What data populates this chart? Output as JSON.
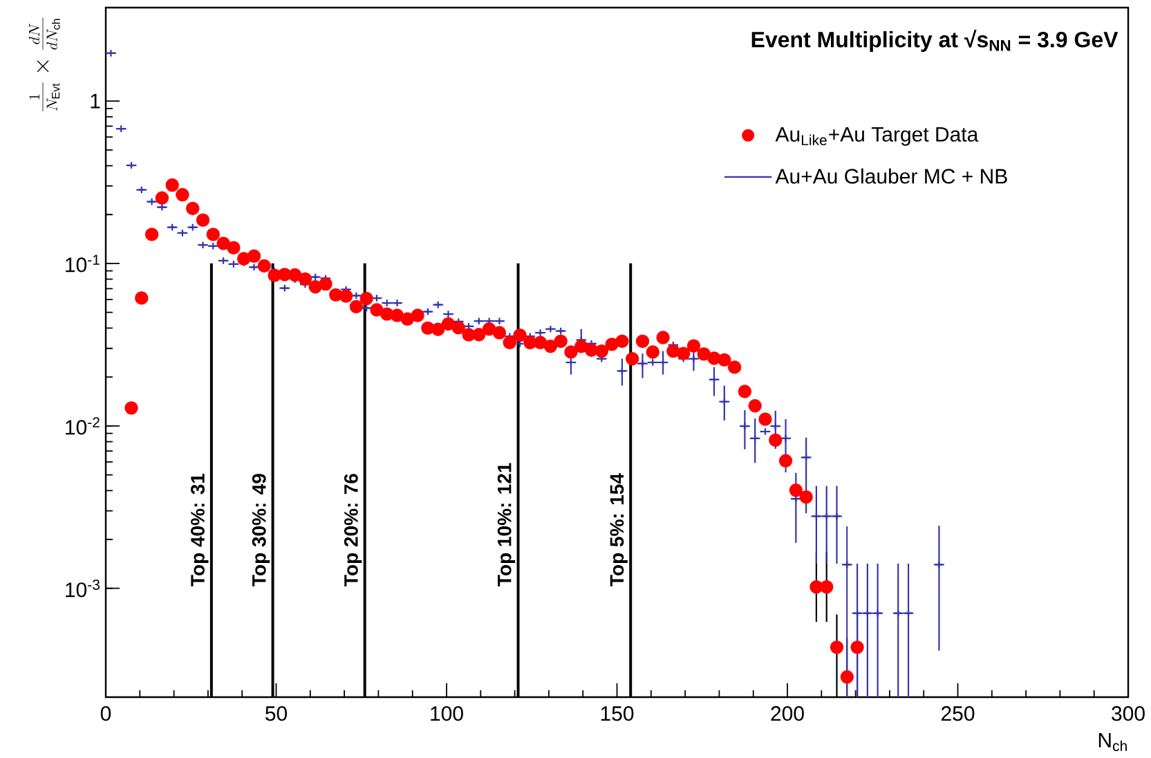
{
  "chart_data": {
    "type": "scatter",
    "title": "Event Multiplicity at √s$_{NN}$ = 3.9 GeV",
    "xlabel": "N$_{ch}$",
    "ylabel": "\\frac{1}{N_{\\mathrm{Evt}}}\\times\\frac{dN}{dN_{\\mathrm{ch}}}",
    "xlim": [
      0,
      300
    ],
    "xticks": [
      0,
      50,
      100,
      150,
      200,
      250,
      300
    ],
    "ylim": [
      0.000214,
      3.76
    ],
    "yticks": [
      {
        "value": 0.001,
        "label": "10$^{-3}$"
      },
      {
        "value": 0.01,
        "label": "10$^{-2}$"
      },
      {
        "value": 0.1,
        "label": "10$^{-1}$"
      },
      1
    ],
    "log": "y",
    "legend": "top right",
    "ref_lines": [
      {
        "axis": "x",
        "value": 31,
        "label": "Top 40%: 31",
        "color": "#000000"
      },
      {
        "axis": "x",
        "value": 49,
        "label": "Top 30%: 49",
        "color": "#000000"
      },
      {
        "axis": "x",
        "value": 76,
        "label": "Top 20%: 76",
        "color": "#000000"
      },
      {
        "axis": "x",
        "value": 121,
        "label": "Top 10%: 121",
        "color": "#000000"
      },
      {
        "axis": "x",
        "value": 154,
        "label": "Top 5%: 154",
        "color": "#000000"
      }
    ],
    "series": [
      {
        "name": "Au$_{Like}$+Au Target Data",
        "color": "#ff0000",
        "marker": "circle",
        "x": [
          7.5,
          10.5,
          13.5,
          16.5,
          19.5,
          22.5,
          25.5,
          28.5,
          31.5,
          34.5,
          37.5,
          40.5,
          43.5,
          46.5,
          49.5,
          52.5,
          55.5,
          58.5,
          61.5,
          64.5,
          67.5,
          70.5,
          73.5,
          76.5,
          79.5,
          82.5,
          85.5,
          88.5,
          91.5,
          94.5,
          97.5,
          100.5,
          103.5,
          106.5,
          109.5,
          112.5,
          115.5,
          118.5,
          121.5,
          124.5,
          127.5,
          130.5,
          133.5,
          136.5,
          139.5,
          142.5,
          145.5,
          148.5,
          151.5,
          154.5,
          157.5,
          160.5,
          163.5,
          166.5,
          169.5,
          172.5,
          175.5,
          178.5,
          181.5,
          184.5,
          187.5,
          190.5,
          193.5,
          196.5,
          199.5,
          202.5,
          205.5,
          208.5,
          211.5,
          214.5,
          217.5,
          220.5
        ],
        "values": [
          0.0129,
          0.0613,
          0.151,
          0.253,
          0.304,
          0.265,
          0.218,
          0.185,
          0.151,
          0.133,
          0.125,
          0.107,
          0.111,
          0.0966,
          0.0845,
          0.0855,
          0.085,
          0.0802,
          0.0718,
          0.0748,
          0.0641,
          0.063,
          0.0542,
          0.0608,
          0.0518,
          0.0488,
          0.0479,
          0.0455,
          0.0479,
          0.04,
          0.0393,
          0.0424,
          0.0402,
          0.0364,
          0.0365,
          0.0395,
          0.0375,
          0.0326,
          0.0362,
          0.0326,
          0.0326,
          0.0309,
          0.0332,
          0.0285,
          0.0309,
          0.0293,
          0.0289,
          0.0318,
          0.0332,
          0.0259,
          0.0332,
          0.0285,
          0.035,
          0.0289,
          0.0279,
          0.0311,
          0.0277,
          0.0261,
          0.0255,
          0.023,
          0.0163,
          0.0133,
          0.011,
          0.00817,
          0.0061,
          0.00402,
          0.00365,
          0.00102,
          0.00102,
          0.000434,
          0.000285,
          0.000434
        ],
        "errors": [
          null,
          null,
          null,
          null,
          null,
          null,
          null,
          null,
          null,
          null,
          null,
          null,
          null,
          null,
          null,
          null,
          null,
          null,
          null,
          null,
          null,
          null,
          null,
          null,
          null,
          null,
          null,
          null,
          null,
          null,
          null,
          null,
          null,
          null,
          null,
          null,
          null,
          null,
          null,
          null,
          null,
          null,
          null,
          null,
          null,
          null,
          null,
          null,
          null,
          null,
          null,
          null,
          null,
          null,
          null,
          null,
          null,
          null,
          null,
          null,
          null,
          null,
          null,
          null,
          null,
          null,
          null,
          [
            0.000622,
            0.00168
          ],
          [
            0.000622,
            0.00168
          ],
          [
            0.000214,
            0.00069
          ],
          [
            0.000214,
            0.000495
          ],
          [
            0.000214,
            0.00069
          ]
        ]
      },
      {
        "name": "Au+Au Glauber MC + NB",
        "color": "#3434b0",
        "marker": "cross",
        "x": [
          1.5,
          4.5,
          7.5,
          10.5,
          13.5,
          16.5,
          19.5,
          22.5,
          25.5,
          28.5,
          31.5,
          34.5,
          37.5,
          40.5,
          43.5,
          46.5,
          49.5,
          52.5,
          55.5,
          58.5,
          61.5,
          64.5,
          67.5,
          70.5,
          73.5,
          76.5,
          79.5,
          82.5,
          85.5,
          88.5,
          91.5,
          94.5,
          97.5,
          100.5,
          103.5,
          106.5,
          109.5,
          112.5,
          115.5,
          118.5,
          121.5,
          124.5,
          127.5,
          130.5,
          133.5,
          136.5,
          139.5,
          142.5,
          145.5,
          148.5,
          151.5,
          154.5,
          157.5,
          160.5,
          163.5,
          166.5,
          169.5,
          172.5,
          175.5,
          178.5,
          181.5,
          184.5,
          187.5,
          190.5,
          193.5,
          196.5,
          199.5,
          202.5,
          205.5,
          208.5,
          211.5,
          214.5,
          217.5,
          220.5,
          223.5,
          226.5,
          232.5,
          235.5,
          244.5
        ],
        "values": [
          1.97,
          0.675,
          0.402,
          0.284,
          0.24,
          0.222,
          0.167,
          0.154,
          0.167,
          0.13,
          0.128,
          0.104,
          0.0991,
          0.101,
          0.0949,
          null,
          0.09,
          0.0705,
          0.0796,
          0.0743,
          0.0825,
          0.081,
          null,
          0.0692,
          0.0634,
          0.0532,
          0.0612,
          0.0571,
          0.0571,
          null,
          null,
          0.0505,
          0.0557,
          0.0488,
          0.0439,
          0.041,
          0.0442,
          0.0442,
          0.0442,
          0.0356,
          0.032,
          0.0356,
          0.0375,
          0.0395,
          0.0384,
          0.0246,
          0.0338,
          0.0321,
          0.0259,
          null,
          0.0218,
          null,
          0.0242,
          0.0246,
          0.0246,
          0.0315,
          0.0259,
          0.0259,
          null,
          0.0193,
          0.0141,
          null,
          0.00997,
          0.00838,
          0.00923,
          0.00997,
          0.00838,
          0.00356,
          0.0064,
          0.00278,
          0.00278,
          0.00278,
          0.0014,
          0.000703,
          0.000703,
          0.000703,
          0.000703,
          0.000703,
          0.0014
        ],
        "errors": [
          null,
          null,
          null,
          null,
          null,
          null,
          null,
          null,
          null,
          null,
          null,
          null,
          null,
          null,
          null,
          null,
          null,
          null,
          null,
          null,
          null,
          null,
          null,
          null,
          null,
          null,
          null,
          null,
          null,
          null,
          null,
          null,
          null,
          null,
          null,
          null,
          null,
          null,
          null,
          null,
          null,
          null,
          null,
          null,
          null,
          [
            0.0207,
            0.0259
          ],
          [
            0.0289,
            0.0395
          ],
          null,
          null,
          null,
          [
            0.0177,
            0.0259
          ],
          null,
          [
            0.0197,
            0.0279
          ],
          null,
          [
            0.0207,
            0.0289
          ],
          null,
          null,
          [
            0.0218,
            0.0289
          ],
          null,
          [
            0.0153,
            0.023
          ],
          [
            0.0108,
            0.0177
          ],
          null,
          [
            0.00718,
            0.0125
          ],
          [
            0.00592,
            0.0111
          ],
          null,
          [
            0.00723,
            0.0124
          ],
          [
            0.00518,
            0.011
          ],
          [
            0.00191,
            0.00514
          ],
          [
            0.0029,
            0.00847
          ],
          [
            0.00142,
            0.00427
          ],
          [
            0.00142,
            0.00427
          ],
          [
            0.00142,
            0.00427
          ],
          [
            0.000214,
            0.00241
          ],
          [
            0.000214,
            0.00142
          ],
          [
            0.000214,
            0.00142
          ],
          [
            0.000214,
            0.00142
          ],
          [
            0.000214,
            0.00142
          ],
          [
            0.000214,
            0.00142
          ],
          [
            0.000414,
            0.00243
          ]
        ],
        "xerrors": [
          1.5,
          1.5,
          1.5,
          1.5,
          1.5,
          1.5,
          1.5,
          1.5,
          1.5,
          1.5,
          1.5,
          1.5,
          1.5,
          1.5,
          1.5,
          null,
          1.5,
          1.5,
          null,
          1.5,
          1.5,
          1.5,
          null,
          1.5,
          1.5,
          1.5,
          1.5,
          1.5,
          1.5,
          null,
          null,
          1.5,
          1.5,
          1.5,
          1.5,
          1.5,
          1.5,
          1.5,
          1.5,
          1.5,
          null,
          1.5,
          1.5,
          1.5,
          1.5,
          1.5,
          1.5,
          1.5,
          1.5,
          null,
          1.5,
          null,
          1.5,
          1.5,
          1.5,
          1.5,
          1.5,
          1.5,
          null,
          1.5,
          1.5,
          null,
          1.5,
          1.5,
          1.5,
          1.5,
          1.5,
          1.5,
          1.5,
          1.5,
          1.5,
          1.5,
          1.5,
          1.5,
          1.5,
          1.5,
          1.5,
          1.5,
          1.5
        ]
      }
    ]
  }
}
